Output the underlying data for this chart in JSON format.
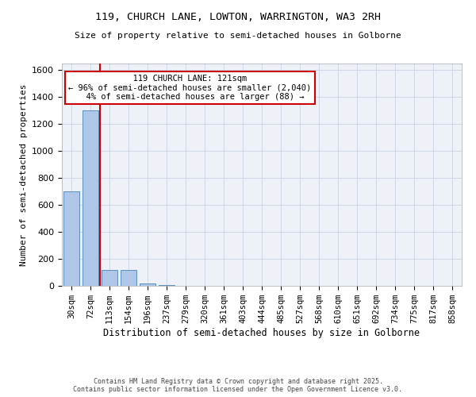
{
  "title_line1": "119, CHURCH LANE, LOWTON, WARRINGTON, WA3 2RH",
  "title_line2": "Size of property relative to semi-detached houses in Golborne",
  "xlabel": "Distribution of semi-detached houses by size in Golborne",
  "ylabel": "Number of semi-detached properties",
  "categories": [
    "30sqm",
    "72sqm",
    "113sqm",
    "154sqm",
    "196sqm",
    "237sqm",
    "279sqm",
    "320sqm",
    "361sqm",
    "403sqm",
    "444sqm",
    "485sqm",
    "527sqm",
    "568sqm",
    "610sqm",
    "651sqm",
    "692sqm",
    "734sqm",
    "775sqm",
    "817sqm",
    "858sqm"
  ],
  "values": [
    700,
    1300,
    120,
    120,
    15,
    5,
    0,
    0,
    0,
    0,
    0,
    0,
    0,
    0,
    0,
    0,
    0,
    0,
    0,
    0,
    0
  ],
  "bar_color": "#aec6e8",
  "bar_edge_color": "#5a8fc0",
  "property_label": "119 CHURCH LANE: 121sqm",
  "pct_smaller": 96,
  "count_smaller": 2040,
  "pct_larger": 4,
  "count_larger": 88,
  "vline_x": 1.5,
  "annotation_box_color": "#cc0000",
  "grid_color": "#d0d8e8",
  "background_color": "#eef2f8",
  "ylim": [
    0,
    1650
  ],
  "yticks": [
    0,
    200,
    400,
    600,
    800,
    1000,
    1200,
    1400,
    1600
  ],
  "footer_line1": "Contains HM Land Registry data © Crown copyright and database right 2025.",
  "footer_line2": "Contains public sector information licensed under the Open Government Licence v3.0."
}
